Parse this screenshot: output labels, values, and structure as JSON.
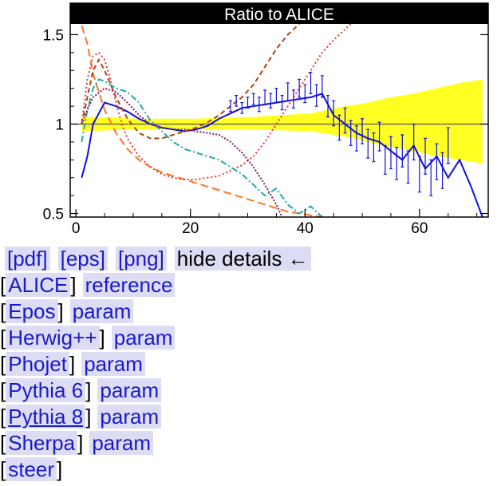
{
  "chart_data": {
    "type": "line",
    "title": "Ratio to ALICE",
    "xlabel": "",
    "ylabel": "",
    "xlim": [
      -1,
      72
    ],
    "ylim": [
      0.48,
      1.56
    ],
    "xticks": [
      "0",
      "20",
      "40",
      "60"
    ],
    "yticks": [
      "0.5",
      "1",
      "1.5"
    ],
    "reference": {
      "name": "ALICE",
      "band_x": [
        1,
        11,
        21,
        31,
        41,
        47,
        51,
        55,
        59,
        63,
        67,
        71
      ],
      "band_lo": [
        0.96,
        0.97,
        0.97,
        0.97,
        0.96,
        0.93,
        0.9,
        0.87,
        0.85,
        0.82,
        0.8,
        0.78
      ],
      "band_hi": [
        1.04,
        1.03,
        1.03,
        1.04,
        1.06,
        1.1,
        1.12,
        1.15,
        1.17,
        1.2,
        1.23,
        1.25
      ]
    },
    "series": [
      {
        "name": "Pythia 8",
        "color": "#1010dd",
        "dash": "",
        "width": 2,
        "x": [
          1,
          2,
          3,
          5,
          7,
          9,
          11,
          13,
          15,
          17,
          19,
          21,
          23,
          25,
          27,
          29,
          31,
          33,
          35,
          37,
          39,
          41,
          43,
          45,
          47,
          49,
          51,
          53,
          55,
          57,
          59,
          61,
          63,
          65,
          67,
          69,
          71
        ],
        "y": [
          0.7,
          0.82,
          1.0,
          1.12,
          1.1,
          1.07,
          1.03,
          1.0,
          0.98,
          0.97,
          0.96,
          0.97,
          0.99,
          1.03,
          1.06,
          1.09,
          1.1,
          1.11,
          1.12,
          1.13,
          1.14,
          1.15,
          1.17,
          1.05,
          1.0,
          0.95,
          0.92,
          0.9,
          0.85,
          0.8,
          0.88,
          0.75,
          0.82,
          0.7,
          0.8,
          0.65,
          0.48
        ]
      },
      {
        "name": "Epos",
        "color": "#ff7722",
        "dash": "10,5",
        "width": 2,
        "x": [
          1,
          2,
          3,
          5,
          7,
          9,
          11,
          13,
          15,
          17,
          19,
          21,
          23,
          25,
          27,
          29,
          31,
          33,
          35,
          37,
          39,
          41,
          43
        ],
        "y": [
          1.55,
          1.45,
          1.28,
          1.08,
          0.95,
          0.86,
          0.8,
          0.76,
          0.73,
          0.71,
          0.69,
          0.67,
          0.65,
          0.63,
          0.61,
          0.59,
          0.57,
          0.55,
          0.53,
          0.51,
          0.5,
          0.49,
          0.48
        ]
      },
      {
        "name": "Herwig++",
        "color": "#aa4411",
        "dash": "6,4",
        "width": 2,
        "x": [
          1,
          2,
          3,
          4,
          5,
          7,
          9,
          11,
          13,
          15,
          17,
          19,
          21,
          23,
          25,
          27,
          29,
          31,
          33,
          35,
          37,
          39
        ],
        "y": [
          1.0,
          1.15,
          1.3,
          1.36,
          1.3,
          1.15,
          1.03,
          0.95,
          0.92,
          0.92,
          0.94,
          0.96,
          0.98,
          1.01,
          1.05,
          1.1,
          1.15,
          1.22,
          1.32,
          1.42,
          1.5,
          1.56
        ]
      },
      {
        "name": "Phojet",
        "color": "#ee3333",
        "dash": "2,3",
        "width": 2,
        "x": [
          1,
          2,
          3,
          4,
          5,
          6,
          7,
          8,
          9,
          11,
          13,
          15,
          17,
          19,
          21,
          23,
          25,
          27,
          29,
          31,
          33,
          35,
          37,
          39,
          41,
          43,
          45,
          47,
          48
        ],
        "y": [
          1.0,
          1.25,
          1.38,
          1.4,
          1.36,
          1.25,
          1.12,
          1.0,
          0.92,
          0.82,
          0.76,
          0.72,
          0.7,
          0.69,
          0.69,
          0.7,
          0.71,
          0.74,
          0.77,
          0.82,
          0.9,
          1.0,
          1.1,
          1.2,
          1.3,
          1.4,
          1.47,
          1.53,
          1.56
        ]
      },
      {
        "name": "Pythia 6",
        "color": "#22aaaa",
        "dash": "8,3,2,3",
        "width": 2,
        "x": [
          1,
          2,
          3,
          4,
          5,
          7,
          9,
          11,
          13,
          15,
          17,
          19,
          21,
          23,
          25,
          27,
          29,
          31,
          33,
          35,
          37,
          39,
          41,
          43
        ],
        "y": [
          0.9,
          1.08,
          1.2,
          1.25,
          1.24,
          1.2,
          1.18,
          1.12,
          1.02,
          0.96,
          0.9,
          0.86,
          0.84,
          0.82,
          0.8,
          0.76,
          0.72,
          0.66,
          0.6,
          0.64,
          0.55,
          0.5,
          0.54,
          0.48
        ]
      },
      {
        "name": "Sherpa",
        "color": "#772266",
        "dash": "2,2",
        "width": 2,
        "x": [
          1,
          2,
          3,
          5,
          7,
          9,
          11,
          13,
          15,
          17,
          19,
          21,
          23,
          25,
          27,
          29,
          31,
          33,
          35,
          36
        ],
        "y": [
          1.0,
          1.08,
          1.15,
          1.2,
          1.18,
          1.12,
          1.05,
          1.0,
          0.98,
          0.97,
          0.97,
          0.96,
          0.95,
          0.94,
          0.9,
          0.84,
          0.76,
          0.66,
          0.55,
          0.48
        ]
      }
    ],
    "reference_points": {
      "x": [
        27,
        28,
        29,
        30,
        31,
        32,
        33,
        34,
        35,
        36,
        37,
        38,
        39,
        40,
        41,
        42,
        43,
        44,
        45,
        46,
        47,
        48,
        49,
        50,
        51,
        52,
        53,
        54,
        55,
        56,
        57,
        58,
        59,
        60,
        61,
        62,
        63,
        64,
        65
      ],
      "y": [
        1.1,
        1.13,
        1.09,
        1.12,
        1.14,
        1.11,
        1.15,
        1.13,
        1.16,
        1.12,
        1.18,
        1.14,
        1.2,
        1.17,
        1.23,
        1.16,
        1.21,
        1.1,
        1.06,
        0.98,
        1.02,
        0.95,
        0.92,
        0.96,
        0.89,
        0.87,
        0.93,
        0.8,
        0.84,
        0.78,
        0.85,
        0.76,
        0.9,
        0.72,
        0.82,
        0.7,
        0.79,
        0.74,
        0.88
      ],
      "err": [
        0.03,
        0.03,
        0.03,
        0.03,
        0.03,
        0.04,
        0.04,
        0.04,
        0.04,
        0.04,
        0.05,
        0.05,
        0.05,
        0.05,
        0.06,
        0.06,
        0.06,
        0.06,
        0.07,
        0.07,
        0.07,
        0.07,
        0.07,
        0.07,
        0.08,
        0.08,
        0.08,
        0.08,
        0.09,
        0.09,
        0.09,
        0.09,
        0.1,
        0.1,
        0.1,
        0.1,
        0.1,
        0.1,
        0.1
      ]
    },
    "grid": false,
    "legend": "none"
  },
  "links": {
    "pdf": "[pdf]",
    "eps": "[eps]",
    "png": "[png]",
    "hide_details": "hide details ←",
    "open_bracket": "[",
    "close_bracket": "]",
    "rows": [
      {
        "name": "ALICE",
        "extra": "reference",
        "underline": false
      },
      {
        "name": "Epos",
        "extra": "param",
        "underline": false
      },
      {
        "name": "Herwig++",
        "extra": "param",
        "underline": false
      },
      {
        "name": "Phojet",
        "extra": "param",
        "underline": false
      },
      {
        "name": "Pythia 6",
        "extra": "param",
        "underline": false
      },
      {
        "name": "Pythia 8",
        "extra": "param",
        "underline": true
      },
      {
        "name": "Sherpa",
        "extra": "param",
        "underline": false
      },
      {
        "name": "steer",
        "extra": "",
        "underline": false
      }
    ]
  }
}
